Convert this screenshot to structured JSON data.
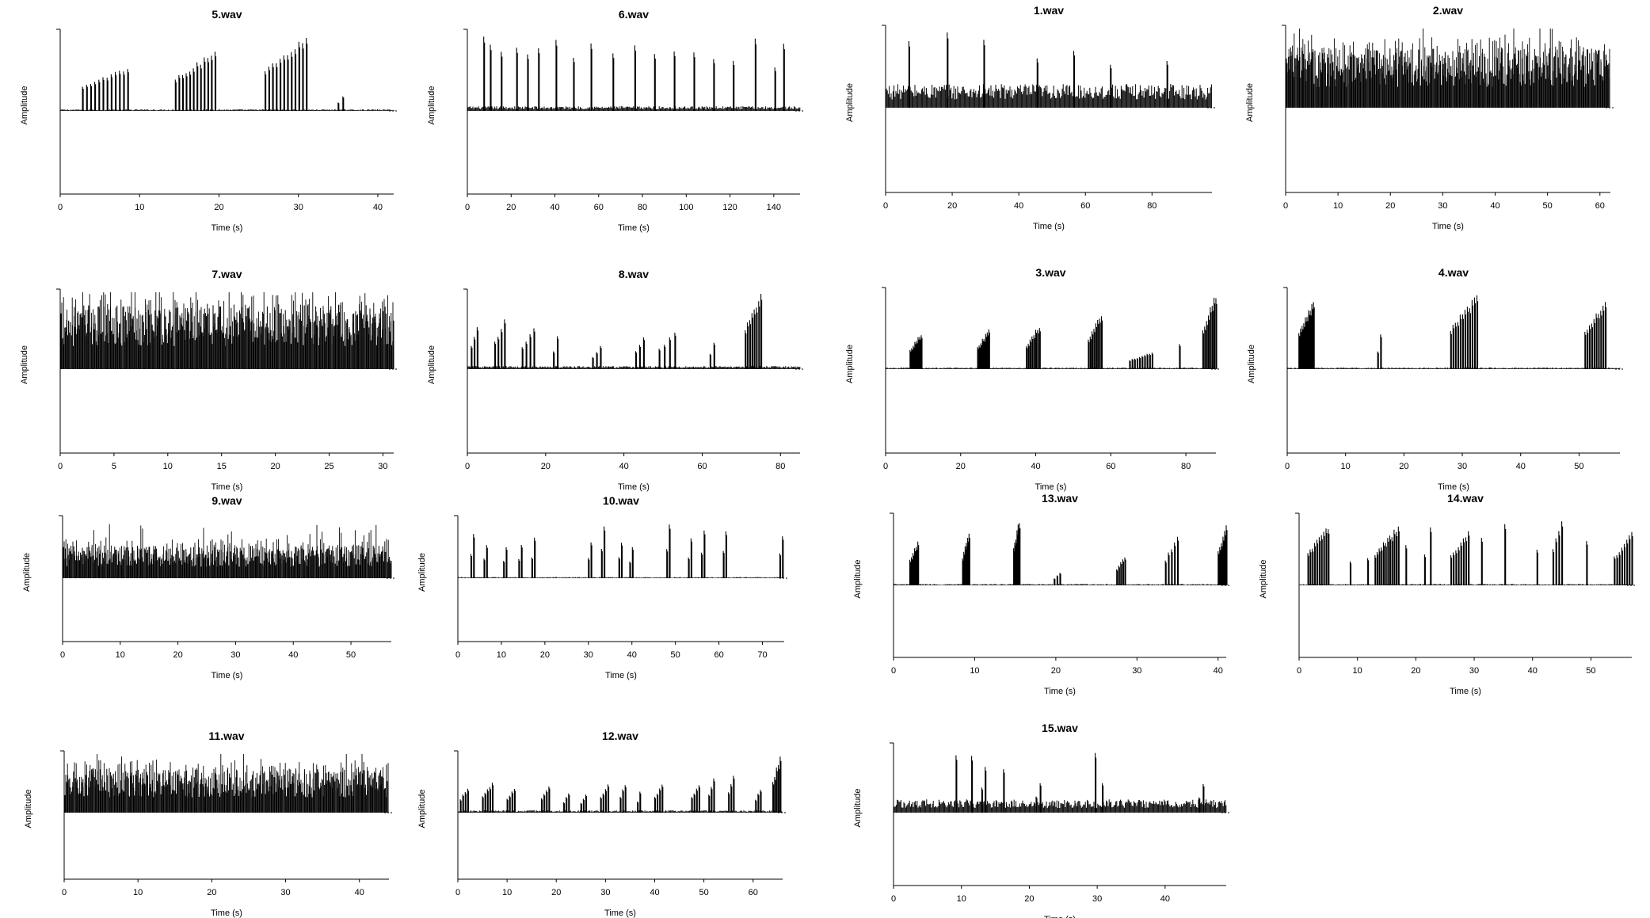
{
  "figure": {
    "xlabel": "Time (s)",
    "ylabel": "Amplitude"
  },
  "chart_data": [
    {
      "type": "line",
      "title": "5.wav",
      "xlabel": "Time (s)",
      "ylabel": "Amplitude",
      "xlim": [
        0,
        42
      ],
      "xticks": [
        0,
        10,
        20,
        30,
        40
      ],
      "grid": false,
      "legend": "none",
      "bursts": [
        {
          "start": 2.8,
          "end": 8.5,
          "amp": 0.58,
          "n": 12
        },
        {
          "start": 14.5,
          "end": 19.5,
          "amp": 0.78,
          "n": 12
        },
        {
          "start": 25.8,
          "end": 31,
          "amp": 0.98,
          "n": 12
        },
        {
          "start": 35,
          "end": 35.6,
          "amp": 0.2,
          "n": 2
        }
      ],
      "baseline": 0.02
    },
    {
      "type": "line",
      "title": "6.wav",
      "xlabel": "Time (s)",
      "ylabel": "Amplitude",
      "xlim": [
        0,
        152
      ],
      "xticks": [
        0,
        20,
        40,
        60,
        80,
        100,
        120,
        140
      ],
      "grid": false,
      "legend": "none",
      "bursts": [
        {
          "start": 7,
          "end": 8,
          "amp": 0.95,
          "n": 1
        },
        {
          "start": 10,
          "end": 11,
          "amp": 0.85,
          "n": 1
        },
        {
          "start": 15,
          "end": 16,
          "amp": 0.8,
          "n": 1
        },
        {
          "start": 22,
          "end": 23,
          "amp": 0.85,
          "n": 1
        },
        {
          "start": 27,
          "end": 28,
          "amp": 0.78,
          "n": 1
        },
        {
          "start": 32,
          "end": 33,
          "amp": 0.8,
          "n": 1
        },
        {
          "start": 40,
          "end": 41,
          "amp": 0.98,
          "n": 1
        },
        {
          "start": 48,
          "end": 49,
          "amp": 0.75,
          "n": 1
        },
        {
          "start": 56,
          "end": 57,
          "amp": 0.92,
          "n": 1
        },
        {
          "start": 66,
          "end": 67,
          "amp": 0.8,
          "n": 1
        },
        {
          "start": 76,
          "end": 77,
          "amp": 0.85,
          "n": 1
        },
        {
          "start": 85,
          "end": 86,
          "amp": 0.78,
          "n": 1
        },
        {
          "start": 94,
          "end": 95,
          "amp": 0.8,
          "n": 1
        },
        {
          "start": 103,
          "end": 104,
          "amp": 0.75,
          "n": 1
        },
        {
          "start": 112,
          "end": 113,
          "amp": 0.7,
          "n": 1
        },
        {
          "start": 121,
          "end": 122,
          "amp": 0.65,
          "n": 1
        },
        {
          "start": 131,
          "end": 132,
          "amp": 0.98,
          "n": 1
        },
        {
          "start": 140,
          "end": 141,
          "amp": 0.6,
          "n": 1
        },
        {
          "start": 144,
          "end": 145,
          "amp": 0.95,
          "n": 1
        }
      ],
      "baseline": 0.06
    },
    {
      "type": "line",
      "title": "1.wav",
      "xlabel": "Time (s)",
      "ylabel": "Amplitude",
      "xlim": [
        0,
        98
      ],
      "xticks": [
        0,
        20,
        40,
        60,
        80
      ],
      "grid": false,
      "legend": "none",
      "bursts": [
        {
          "start": 6.5,
          "end": 7.5,
          "amp": 0.9,
          "n": 1
        },
        {
          "start": 18,
          "end": 19,
          "amp": 1.0,
          "n": 1
        },
        {
          "start": 29,
          "end": 30,
          "amp": 0.95,
          "n": 1
        },
        {
          "start": 45,
          "end": 46,
          "amp": 0.65,
          "n": 1
        },
        {
          "start": 56,
          "end": 57,
          "amp": 0.72,
          "n": 1
        },
        {
          "start": 67,
          "end": 68,
          "amp": 0.6,
          "n": 1
        },
        {
          "start": 84,
          "end": 85,
          "amp": 0.65,
          "n": 1
        }
      ],
      "baseline": 0.3
    },
    {
      "type": "line",
      "title": "2.wav",
      "xlabel": "Time (s)",
      "ylabel": "Amplitude",
      "xlim": [
        0,
        62
      ],
      "xticks": [
        0,
        10,
        20,
        30,
        40,
        50,
        60
      ],
      "grid": false,
      "legend": "none",
      "bursts": [],
      "baseline": 0.75
    },
    {
      "type": "line",
      "title": "7.wav",
      "xlabel": "Time (s)",
      "ylabel": "Amplitude",
      "xlim": [
        0,
        31
      ],
      "xticks": [
        0,
        5,
        10,
        15,
        20,
        25,
        30
      ],
      "grid": false,
      "legend": "none",
      "bursts": [],
      "baseline": 0.85
    },
    {
      "type": "line",
      "title": "8.wav",
      "xlabel": "Time (s)",
      "ylabel": "Amplitude",
      "xlim": [
        0,
        85
      ],
      "xticks": [
        0,
        20,
        40,
        60,
        80
      ],
      "grid": false,
      "legend": "none",
      "bursts": [
        {
          "start": 1,
          "end": 2.5,
          "amp": 0.6,
          "n": 3
        },
        {
          "start": 7,
          "end": 9.5,
          "amp": 0.65,
          "n": 4
        },
        {
          "start": 14,
          "end": 17,
          "amp": 0.55,
          "n": 4
        },
        {
          "start": 22,
          "end": 23,
          "amp": 0.45,
          "n": 2
        },
        {
          "start": 32,
          "end": 34,
          "amp": 0.3,
          "n": 3
        },
        {
          "start": 43,
          "end": 45,
          "amp": 0.45,
          "n": 3
        },
        {
          "start": 49,
          "end": 53,
          "amp": 0.5,
          "n": 4
        },
        {
          "start": 62,
          "end": 63,
          "amp": 0.38,
          "n": 2
        },
        {
          "start": 71,
          "end": 75,
          "amp": 1.0,
          "n": 8
        }
      ],
      "baseline": 0.04
    },
    {
      "type": "line",
      "title": "3.wav",
      "xlabel": "Time (s)",
      "ylabel": "Amplitude",
      "xlim": [
        0,
        88
      ],
      "xticks": [
        0,
        20,
        40,
        60,
        80
      ],
      "grid": false,
      "legend": "none",
      "bursts": [
        {
          "start": 6.5,
          "end": 9.5,
          "amp": 0.48,
          "n": 8
        },
        {
          "start": 24.5,
          "end": 27.5,
          "amp": 0.52,
          "n": 8
        },
        {
          "start": 37.5,
          "end": 41,
          "amp": 0.58,
          "n": 8
        },
        {
          "start": 54,
          "end": 57.5,
          "amp": 0.74,
          "n": 8
        },
        {
          "start": 65,
          "end": 71,
          "amp": 0.22,
          "n": 10
        },
        {
          "start": 78,
          "end": 78.6,
          "amp": 0.32,
          "n": 1
        },
        {
          "start": 84.5,
          "end": 88,
          "amp": 0.98,
          "n": 8
        }
      ],
      "baseline": 0.02
    },
    {
      "type": "line",
      "title": "4.wav",
      "xlabel": "Time (s)",
      "ylabel": "Amplitude",
      "xlim": [
        0,
        57
      ],
      "xticks": [
        0,
        10,
        20,
        30,
        40,
        50
      ],
      "grid": false,
      "legend": "none",
      "bursts": [
        {
          "start": 2,
          "end": 4.5,
          "amp": 0.9,
          "n": 10
        },
        {
          "start": 15.5,
          "end": 16,
          "amp": 0.45,
          "n": 2
        },
        {
          "start": 28,
          "end": 32.5,
          "amp": 0.98,
          "n": 12
        },
        {
          "start": 51,
          "end": 54.5,
          "amp": 0.9,
          "n": 10
        }
      ],
      "baseline": 0.02
    },
    {
      "type": "line",
      "title": "9.wav",
      "xlabel": "Time (s)",
      "ylabel": "Amplitude",
      "xlim": [
        0,
        57
      ],
      "xticks": [
        0,
        10,
        20,
        30,
        40,
        50
      ],
      "grid": false,
      "legend": "none",
      "bursts": [],
      "baseline": 0.55
    },
    {
      "type": "line",
      "title": "10.wav",
      "xlabel": "Time (s)",
      "ylabel": "Amplitude",
      "xlim": [
        0,
        75
      ],
      "xticks": [
        0,
        10,
        20,
        30,
        40,
        50,
        60,
        70
      ],
      "grid": false,
      "legend": "none",
      "bursts": [
        {
          "start": 3,
          "end": 3.6,
          "amp": 0.75,
          "n": 2
        },
        {
          "start": 6,
          "end": 6.6,
          "amp": 0.6,
          "n": 2
        },
        {
          "start": 10.5,
          "end": 11.1,
          "amp": 0.55,
          "n": 2
        },
        {
          "start": 14,
          "end": 14.6,
          "amp": 0.6,
          "n": 2
        },
        {
          "start": 17,
          "end": 17.6,
          "amp": 0.7,
          "n": 2
        },
        {
          "start": 30,
          "end": 30.6,
          "amp": 0.65,
          "n": 2
        },
        {
          "start": 33,
          "end": 33.6,
          "amp": 0.9,
          "n": 2
        },
        {
          "start": 37,
          "end": 37.6,
          "amp": 0.65,
          "n": 2
        },
        {
          "start": 39.5,
          "end": 40.1,
          "amp": 0.55,
          "n": 2
        },
        {
          "start": 48,
          "end": 48.6,
          "amp": 0.95,
          "n": 2
        },
        {
          "start": 53,
          "end": 53.6,
          "amp": 0.7,
          "n": 2
        },
        {
          "start": 56,
          "end": 56.6,
          "amp": 0.85,
          "n": 2
        },
        {
          "start": 61,
          "end": 61.6,
          "amp": 0.85,
          "n": 2
        },
        {
          "start": 74,
          "end": 74.6,
          "amp": 0.78,
          "n": 2
        }
      ],
      "baseline": 0.02
    },
    {
      "type": "line",
      "title": "13.wav",
      "xlabel": "Time (s)",
      "ylabel": "Amplitude",
      "xlim": [
        0,
        41
      ],
      "xticks": [
        0,
        10,
        20,
        30,
        40
      ],
      "grid": false,
      "legend": "none",
      "bursts": [
        {
          "start": 2,
          "end": 3,
          "amp": 0.68,
          "n": 6
        },
        {
          "start": 8.5,
          "end": 9.3,
          "amp": 0.78,
          "n": 6
        },
        {
          "start": 14.8,
          "end": 15.5,
          "amp": 1.0,
          "n": 6
        },
        {
          "start": 19.8,
          "end": 20.5,
          "amp": 0.2,
          "n": 3
        },
        {
          "start": 27.5,
          "end": 28.5,
          "amp": 0.45,
          "n": 5
        },
        {
          "start": 33.5,
          "end": 35,
          "amp": 0.72,
          "n": 5
        },
        {
          "start": 40,
          "end": 41,
          "amp": 0.92,
          "n": 6
        }
      ],
      "baseline": 0.02
    },
    {
      "type": "line",
      "title": "14.wav",
      "xlabel": "Time (s)",
      "ylabel": "Amplitude",
      "xlim": [
        0,
        57
      ],
      "xticks": [
        0,
        10,
        20,
        30,
        40,
        50
      ],
      "grid": false,
      "legend": "none",
      "bursts": [
        {
          "start": 1.5,
          "end": 5,
          "amp": 0.9,
          "n": 10
        },
        {
          "start": 8.5,
          "end": 9,
          "amp": 0.35,
          "n": 1
        },
        {
          "start": 11.5,
          "end": 12,
          "amp": 0.4,
          "n": 1
        },
        {
          "start": 13,
          "end": 17,
          "amp": 0.88,
          "n": 12
        },
        {
          "start": 18,
          "end": 18.6,
          "amp": 0.6,
          "n": 1
        },
        {
          "start": 21.5,
          "end": 22.5,
          "amp": 0.85,
          "n": 2
        },
        {
          "start": 26,
          "end": 29,
          "amp": 0.8,
          "n": 8
        },
        {
          "start": 31,
          "end": 31.5,
          "amp": 0.75,
          "n": 1
        },
        {
          "start": 35,
          "end": 35.5,
          "amp": 0.9,
          "n": 1
        },
        {
          "start": 40.5,
          "end": 41,
          "amp": 0.55,
          "n": 1
        },
        {
          "start": 43.5,
          "end": 45,
          "amp": 1.0,
          "n": 4
        },
        {
          "start": 49,
          "end": 49.5,
          "amp": 0.68,
          "n": 1
        },
        {
          "start": 54,
          "end": 57,
          "amp": 0.78,
          "n": 8
        }
      ],
      "baseline": 0.02
    },
    {
      "type": "line",
      "title": "11.wav",
      "xlabel": "Time (s)",
      "ylabel": "Amplitude",
      "xlim": [
        0,
        44
      ],
      "xticks": [
        0,
        10,
        20,
        30,
        40
      ],
      "grid": false,
      "legend": "none",
      "bursts": [],
      "baseline": 0.75
    },
    {
      "type": "line",
      "title": "12.wav",
      "xlabel": "Time (s)",
      "ylabel": "Amplitude",
      "xlim": [
        0,
        66
      ],
      "xticks": [
        0,
        10,
        20,
        30,
        40,
        50,
        60
      ],
      "grid": false,
      "legend": "none",
      "bursts": [
        {
          "start": 0.5,
          "end": 2,
          "amp": 0.45,
          "n": 4
        },
        {
          "start": 5,
          "end": 7,
          "amp": 0.52,
          "n": 5
        },
        {
          "start": 10,
          "end": 11.5,
          "amp": 0.45,
          "n": 4
        },
        {
          "start": 17,
          "end": 18.5,
          "amp": 0.48,
          "n": 4
        },
        {
          "start": 21.5,
          "end": 22.5,
          "amp": 0.35,
          "n": 3
        },
        {
          "start": 25,
          "end": 26,
          "amp": 0.32,
          "n": 3
        },
        {
          "start": 29,
          "end": 30.5,
          "amp": 0.5,
          "n": 4
        },
        {
          "start": 33,
          "end": 34,
          "amp": 0.52,
          "n": 3
        },
        {
          "start": 36.5,
          "end": 37,
          "amp": 0.38,
          "n": 2
        },
        {
          "start": 40,
          "end": 41.5,
          "amp": 0.5,
          "n": 4
        },
        {
          "start": 47.5,
          "end": 49,
          "amp": 0.5,
          "n": 4
        },
        {
          "start": 51,
          "end": 52,
          "amp": 0.6,
          "n": 3
        },
        {
          "start": 55,
          "end": 56,
          "amp": 0.65,
          "n": 3
        },
        {
          "start": 60.5,
          "end": 61.5,
          "amp": 0.42,
          "n": 3
        },
        {
          "start": 64,
          "end": 65.5,
          "amp": 1.0,
          "n": 5
        }
      ],
      "baseline": 0.04
    },
    {
      "type": "line",
      "title": "15.wav",
      "xlabel": "Time (s)",
      "ylabel": "Amplitude",
      "xlim": [
        0,
        49
      ],
      "xticks": [
        0,
        10,
        20,
        30,
        40
      ],
      "grid": false,
      "legend": "none",
      "bursts": [
        {
          "start": 9,
          "end": 9.4,
          "amp": 0.95,
          "n": 1
        },
        {
          "start": 11.3,
          "end": 11.7,
          "amp": 0.9,
          "n": 1
        },
        {
          "start": 13,
          "end": 13.5,
          "amp": 0.75,
          "n": 2
        },
        {
          "start": 16,
          "end": 16.4,
          "amp": 0.72,
          "n": 1
        },
        {
          "start": 21,
          "end": 21.6,
          "amp": 0.45,
          "n": 2
        },
        {
          "start": 29.5,
          "end": 29.9,
          "amp": 0.98,
          "n": 1
        },
        {
          "start": 30.5,
          "end": 31,
          "amp": 0.45,
          "n": 1
        },
        {
          "start": 45,
          "end": 45.6,
          "amp": 0.45,
          "n": 2
        }
      ],
      "baseline": 0.2
    }
  ]
}
